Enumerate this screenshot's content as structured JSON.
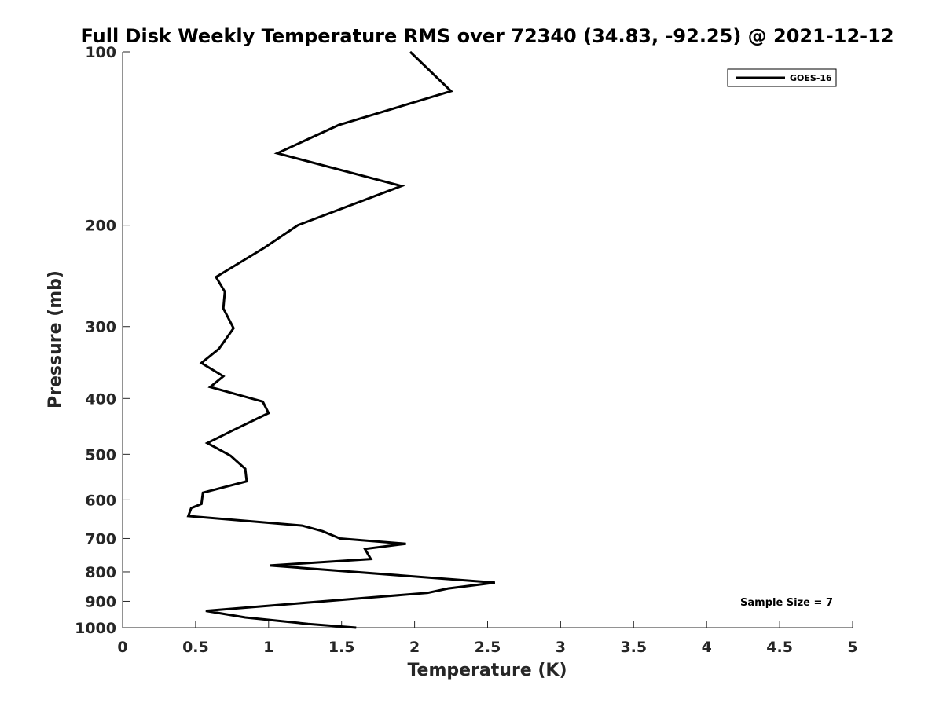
{
  "chart_data": {
    "type": "line",
    "title": "Full Disk Weekly Temperature RMS over 72340 (34.83, -92.25) @ 2021-12-12",
    "xlabel": "Temperature (K)",
    "ylabel": "Pressure (mb)",
    "xlim": [
      0,
      5
    ],
    "ylim": [
      1000,
      100
    ],
    "yscale": "log",
    "y_reversed": true,
    "xticks": [
      "0",
      "0.5",
      "1",
      "1.5",
      "2",
      "2.5",
      "3",
      "3.5",
      "4",
      "4.5",
      "5"
    ],
    "yticks": [
      "100",
      "200",
      "300",
      "400",
      "500",
      "600",
      "700",
      "800",
      "900",
      "1000"
    ],
    "grid": false,
    "legend_position": "top-right",
    "series": [
      {
        "name": "GOES-16",
        "color": "#000000",
        "points": [
          [
            1.97,
            100
          ],
          [
            2.25,
            117
          ],
          [
            1.48,
            134
          ],
          [
            1.06,
            150
          ],
          [
            1.91,
            171
          ],
          [
            1.2,
            200
          ],
          [
            0.97,
            219
          ],
          [
            0.64,
            246
          ],
          [
            0.7,
            261
          ],
          [
            0.69,
            279
          ],
          [
            0.76,
            302
          ],
          [
            0.66,
            328
          ],
          [
            0.54,
            347
          ],
          [
            0.69,
            366
          ],
          [
            0.6,
            382
          ],
          [
            0.96,
            405
          ],
          [
            1.0,
            424
          ],
          [
            0.75,
            455
          ],
          [
            0.58,
            478
          ],
          [
            0.74,
            503
          ],
          [
            0.84,
            530
          ],
          [
            0.85,
            557
          ],
          [
            0.55,
            583
          ],
          [
            0.54,
            610
          ],
          [
            0.47,
            620
          ],
          [
            0.45,
            640
          ],
          [
            1.23,
            665
          ],
          [
            1.37,
            680
          ],
          [
            1.49,
            700
          ],
          [
            1.94,
            715
          ],
          [
            1.66,
            730
          ],
          [
            1.7,
            760
          ],
          [
            1.01,
            780
          ],
          [
            2.55,
            835
          ],
          [
            2.23,
            855
          ],
          [
            2.09,
            870
          ],
          [
            0.57,
            935
          ],
          [
            0.84,
            960
          ],
          [
            1.27,
            985
          ],
          [
            1.6,
            1000
          ]
        ]
      }
    ],
    "annotations": [
      "Sample Size = 7"
    ]
  }
}
